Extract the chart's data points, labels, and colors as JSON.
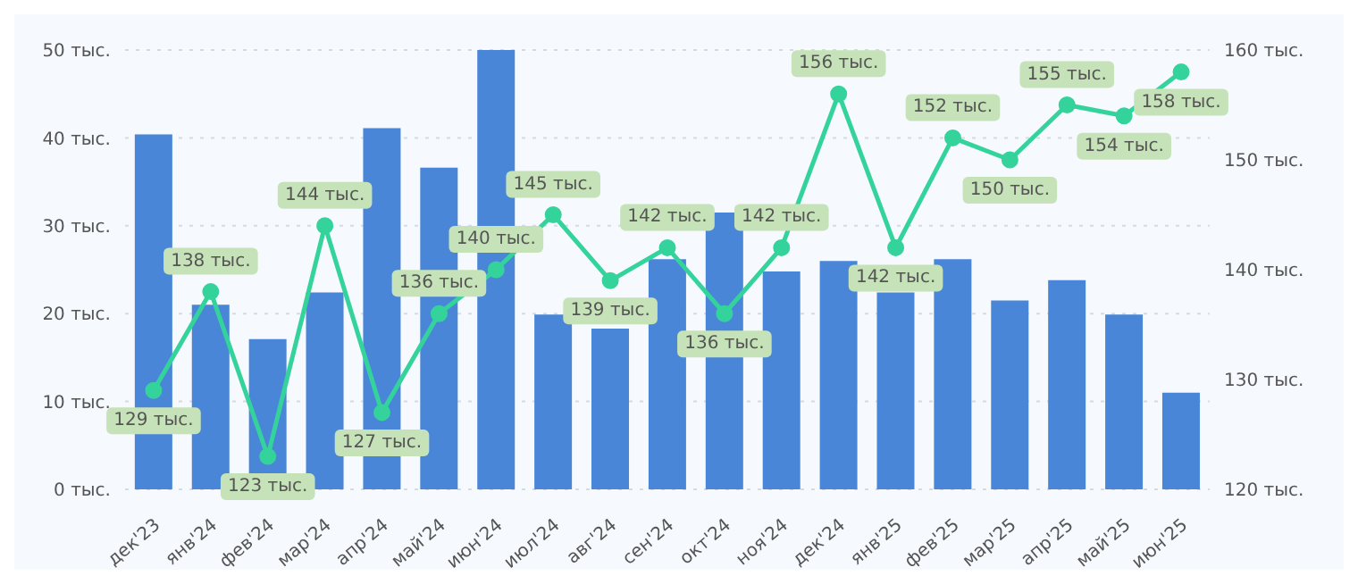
{
  "chart_data": {
    "type": "bar",
    "categories": [
      "дек'23",
      "янв'24",
      "фев'24",
      "мар'24",
      "апр'24",
      "май'24",
      "июн'24",
      "июл'24",
      "авг'24",
      "сен'24",
      "окт'24",
      "ноя'24",
      "дек'24",
      "янв'25",
      "фев'25",
      "мар'25",
      "апр'25",
      "май'25",
      "июн'25"
    ],
    "series": [
      {
        "color": "#4a86d8",
        "values": [
          40.4,
          21,
          17.1,
          22.4,
          41.1,
          36.6,
          50,
          19.9,
          18.3,
          26.2,
          31.5,
          24.8,
          26,
          22.4,
          26.2,
          21.5,
          23.8,
          19.9,
          11
        ]
      },
      {
        "type": "line",
        "axis": "y2",
        "color": "#34d39c",
        "marker": "circle",
        "values": [
          129,
          138,
          123,
          144,
          127,
          136,
          140,
          145,
          139,
          142,
          136,
          142,
          156,
          142,
          152,
          150,
          155,
          154,
          158
        ],
        "value_labels": [
          "129 тыс.",
          "138 тыс.",
          "123 тыс.",
          "144 тыс.",
          "127 тыс.",
          "136 тыс.",
          "140 тыс.",
          "145 тыс.",
          "139 тыс.",
          "142 тыс.",
          "136 тыс.",
          "142 тыс.",
          "156 тыс.",
          "142 тыс.",
          "152 тыс.",
          "150 тыс.",
          "155 тыс.",
          "154 тыс.",
          "158 тыс."
        ]
      }
    ],
    "ylim": [
      0,
      50
    ],
    "yticks": [
      {
        "value": 0,
        "label": "0 тыс."
      },
      {
        "value": 10,
        "label": "10 тыс."
      },
      {
        "value": 20,
        "label": "20 тыс."
      },
      {
        "value": 30,
        "label": "30 тыс."
      },
      {
        "value": 40,
        "label": "40 тыс."
      },
      {
        "value": 50,
        "label": "50 тыс."
      }
    ],
    "y2lim": [
      120,
      160
    ],
    "y2ticks": [
      {
        "value": 120,
        "label": "120 тыс."
      },
      {
        "value": 130,
        "label": "130 тыс."
      },
      {
        "value": 140,
        "label": "140 тыс."
      },
      {
        "value": 150,
        "label": "150 тыс."
      },
      {
        "value": 160,
        "label": "160 тыс."
      }
    ],
    "grid": "y",
    "legend": false
  }
}
